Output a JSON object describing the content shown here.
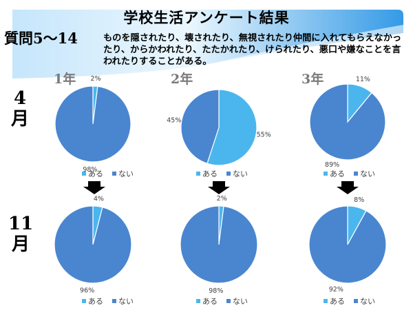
{
  "header": {
    "title": "学校生活アンケート結果",
    "question_label": "質問5～14",
    "question_text": "ものを隠されたり、壊されたり、無視されたり仲間に入れてもらえなかったり、からかわれたり、たたかれたり、けられたり、悪口や嫌なことを言われたりすることがある。"
  },
  "grades": [
    "1年",
    "2年",
    "3年"
  ],
  "months": [
    {
      "num": "4",
      "kanji": "月"
    },
    {
      "num": "11",
      "kanji": "月"
    }
  ],
  "colors": {
    "aru": "#4bb6ee",
    "nai": "#4a86cf",
    "banner": "#1e8fe3",
    "arrow": "#000000"
  },
  "chart_data": [
    {
      "type": "pie",
      "grade": "1年",
      "month": "4月",
      "labels": [
        "ある",
        "ない"
      ],
      "values": [
        2,
        98
      ],
      "display": [
        "2%",
        "98%"
      ]
    },
    {
      "type": "pie",
      "grade": "2年",
      "month": "4月",
      "labels": [
        "ある",
        "ない"
      ],
      "values": [
        55,
        45
      ],
      "display": [
        "55%",
        "45%"
      ]
    },
    {
      "type": "pie",
      "grade": "3年",
      "month": "4月",
      "labels": [
        "ある",
        "ない"
      ],
      "values": [
        11,
        89
      ],
      "display": [
        "11%",
        "89%"
      ]
    },
    {
      "type": "pie",
      "grade": "1年",
      "month": "11月",
      "labels": [
        "ある",
        "ない"
      ],
      "values": [
        4,
        96
      ],
      "display": [
        "4%",
        "96%"
      ]
    },
    {
      "type": "pie",
      "grade": "2年",
      "month": "11月",
      "labels": [
        "ある",
        "ない"
      ],
      "values": [
        2,
        98
      ],
      "display": [
        "2%",
        "98%"
      ]
    },
    {
      "type": "pie",
      "grade": "3年",
      "month": "11月",
      "labels": [
        "ある",
        "ない"
      ],
      "values": [
        8,
        92
      ],
      "display": [
        "8%",
        "92%"
      ]
    }
  ]
}
